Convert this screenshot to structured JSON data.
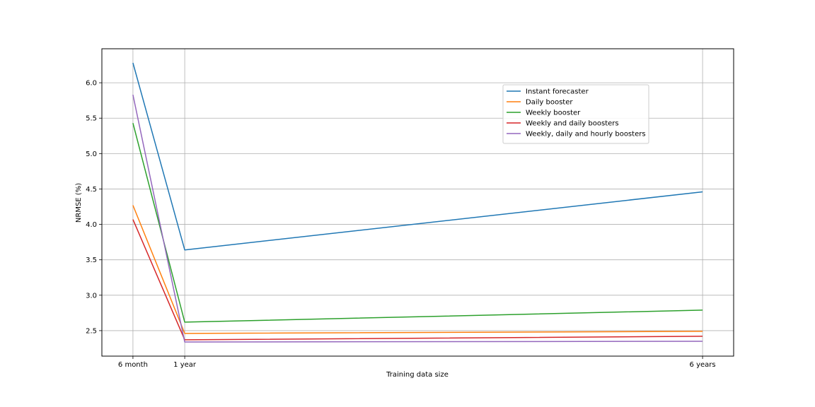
{
  "chart_data": {
    "type": "line",
    "title": "",
    "xlabel": "Training data size",
    "ylabel": "NRMSE (%)",
    "x": [
      0.5,
      1,
      6
    ],
    "x_tick_labels": [
      "6 month",
      "1 year",
      "6 years"
    ],
    "xlim": [
      0.2,
      6.3
    ],
    "ylim": [
      2.14,
      6.48
    ],
    "y_ticks": [
      2.5,
      3.0,
      3.5,
      4.0,
      4.5,
      5.0,
      5.5,
      6.0
    ],
    "y_tick_labels": [
      "2.5",
      "3.0",
      "3.5",
      "4.0",
      "4.5",
      "5.0",
      "5.5",
      "6.0"
    ],
    "grid": true,
    "legend_position": "upper-right",
    "series": [
      {
        "name": "Instant forecaster",
        "color": "#1f77b4",
        "values": [
          6.28,
          3.64,
          4.46
        ]
      },
      {
        "name": "Daily booster",
        "color": "#ff7f0e",
        "values": [
          4.27,
          2.46,
          2.49
        ]
      },
      {
        "name": "Weekly booster",
        "color": "#2ca02c",
        "values": [
          5.43,
          2.62,
          2.79
        ]
      },
      {
        "name": "Weekly and daily boosters",
        "color": "#d62728",
        "values": [
          4.07,
          2.37,
          2.42
        ]
      },
      {
        "name": "Weekly, daily and hourly boosters",
        "color": "#9467bd",
        "values": [
          5.83,
          2.34,
          2.35
        ]
      }
    ]
  }
}
